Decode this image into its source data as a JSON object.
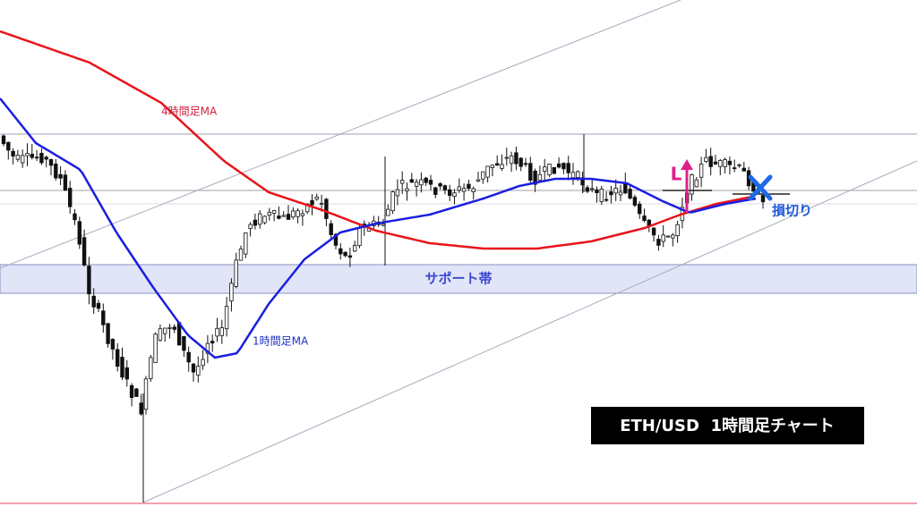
{
  "chart_data": {
    "type": "candlestick",
    "title": "ETH/USD  1時間足チャート",
    "annotations": {
      "ma_4h": "4時間足MA",
      "ma_1h": "1時間足MA",
      "support": "サポート帯",
      "long": "L",
      "stop": "損切り"
    }
  }
}
